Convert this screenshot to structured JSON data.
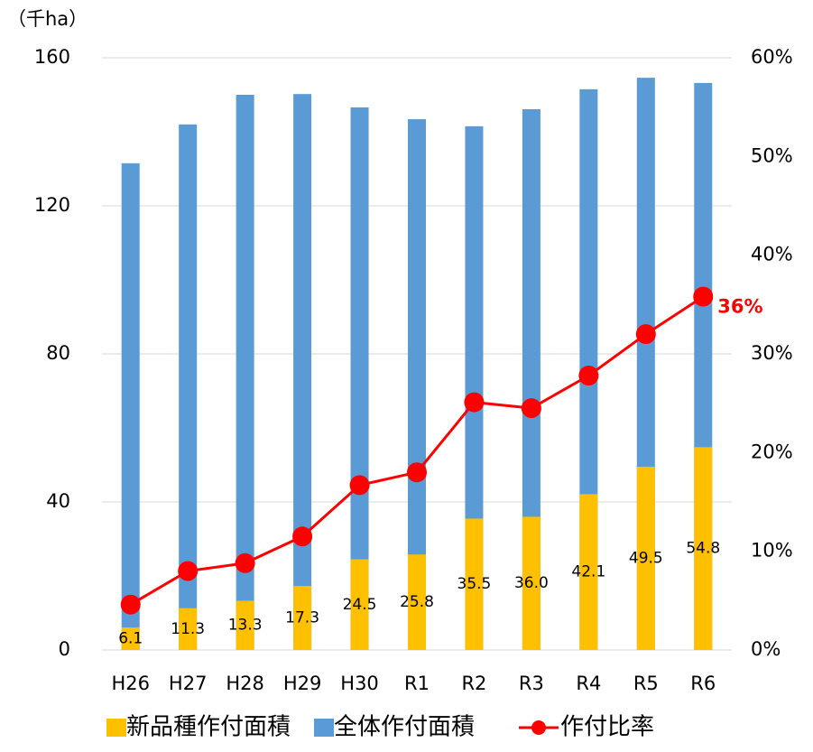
{
  "chart_data": {
    "type": "bar-line",
    "y_unit_label": "（千ha）",
    "annotation": "36%",
    "categories": [
      "H26",
      "H27",
      "H28",
      "H29",
      "H30",
      "R1",
      "R2",
      "R3",
      "R4",
      "R5",
      "R6"
    ],
    "series": [
      {
        "name": "全体作付面積",
        "color": "#5b9bd5",
        "type": "bar",
        "values": [
          131.5,
          142,
          150,
          150.2,
          146.6,
          143.4,
          141.5,
          146.1,
          151.5,
          154.6,
          153.2
        ]
      },
      {
        "name": "新品種作付面積",
        "color": "#ffc000",
        "type": "bar",
        "values": [
          6.1,
          11.3,
          13.3,
          17.3,
          24.5,
          25.8,
          35.5,
          36.0,
          42.1,
          49.5,
          54.8
        ],
        "value_labels": [
          "6.1",
          "11.3",
          "13.3",
          "17.3",
          "24.5",
          "25.8",
          "35.5",
          "36.0",
          "42.1",
          "49.5",
          "54.8"
        ]
      },
      {
        "name": "作付比率",
        "color": "#ff0000",
        "type": "line",
        "axis": "y2",
        "values": [
          4.6,
          8.0,
          8.8,
          11.5,
          16.7,
          18.0,
          25.1,
          24.5,
          27.8,
          32.0,
          35.8
        ]
      }
    ],
    "ylim": [
      0,
      160
    ],
    "yticks": [
      0,
      40,
      80,
      120,
      160
    ],
    "y2lim": [
      0,
      60
    ],
    "y2ticks": [
      {
        "value": 0,
        "label": "0%"
      },
      {
        "value": 10,
        "label": "10%"
      },
      {
        "value": 20,
        "label": "20%"
      },
      {
        "value": 30,
        "label": "30%"
      },
      {
        "value": 40,
        "label": "40%"
      },
      {
        "value": 50,
        "label": "50%"
      },
      {
        "value": 60,
        "label": "60%"
      }
    ],
    "grid": true
  }
}
